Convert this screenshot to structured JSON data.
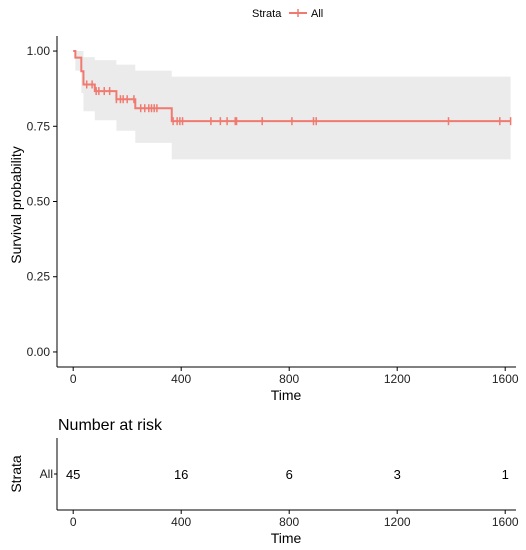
{
  "legend": {
    "title": "Strata",
    "entry": "All"
  },
  "colors": {
    "curve": "#f07a70",
    "ci_band": "#ebebeb",
    "axis": "#000000"
  },
  "chart_data": [
    {
      "type": "line",
      "subtype": "kaplan-meier",
      "xlabel": "Time",
      "ylabel": "Survival probability",
      "xlim": [
        -60,
        1640
      ],
      "ylim": [
        -0.05,
        1.05
      ],
      "x_ticks": [
        0,
        400,
        800,
        1200,
        1600
      ],
      "y_ticks": [
        "0.00",
        "0.25",
        "0.50",
        "0.75",
        "1.00"
      ],
      "grid": false,
      "legend_position": "top",
      "series": [
        {
          "name": "All",
          "steps": [
            {
              "x": 0,
              "y": 1.0,
              "lower": 1.0,
              "upper": 1.0
            },
            {
              "x": 8,
              "y": 0.978,
              "lower": 0.935,
              "upper": 1.0
            },
            {
              "x": 30,
              "y": 0.933,
              "lower": 0.86,
              "upper": 1.0
            },
            {
              "x": 38,
              "y": 0.889,
              "lower": 0.8,
              "upper": 0.98
            },
            {
              "x": 80,
              "y": 0.867,
              "lower": 0.77,
              "upper": 0.97
            },
            {
              "x": 160,
              "y": 0.84,
              "lower": 0.735,
              "upper": 0.955
            },
            {
              "x": 230,
              "y": 0.81,
              "lower": 0.695,
              "upper": 0.935
            },
            {
              "x": 365,
              "y": 0.767,
              "lower": 0.64,
              "upper": 0.915
            }
          ],
          "end_x": 1620,
          "censored": [
            50,
            70,
            85,
            95,
            115,
            135,
            160,
            175,
            185,
            200,
            225,
            250,
            265,
            280,
            290,
            300,
            310,
            370,
            385,
            395,
            405,
            510,
            545,
            570,
            600,
            605,
            700,
            810,
            890,
            900,
            1390,
            1580,
            1620
          ]
        }
      ]
    },
    {
      "type": "table",
      "title": "Number at risk",
      "xlabel": "Time",
      "ylabel": "Strata",
      "row_label": "All",
      "x_ticks": [
        0,
        400,
        800,
        1200,
        1600
      ],
      "counts": [
        45,
        16,
        6,
        3,
        1
      ]
    }
  ]
}
